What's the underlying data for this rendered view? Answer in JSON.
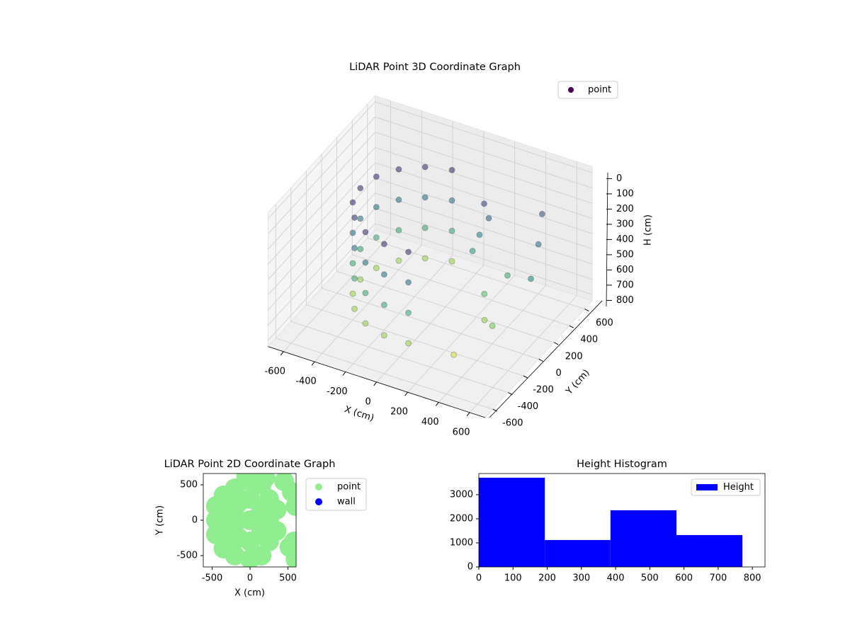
{
  "chart_data": [
    {
      "type": "scatter3d",
      "title": "LiDAR Point 3D Coordinate Graph",
      "xlabel": "X (cm)",
      "ylabel": "Y (cm)",
      "zlabel": "H (cm)",
      "xlim": [
        -700,
        700
      ],
      "ylim": [
        -700,
        700
      ],
      "zlim": [
        -40,
        840
      ],
      "z_inverted": true,
      "xticks": [
        -600,
        -400,
        -200,
        0,
        200,
        400,
        600
      ],
      "yticks": [
        -600,
        -400,
        -200,
        0,
        200,
        400,
        600
      ],
      "zticks": [
        0,
        100,
        200,
        300,
        400,
        500,
        600,
        700,
        800
      ],
      "grid": true,
      "legend": "upper right",
      "colormap": "viridis",
      "series": [
        {
          "name": "point",
          "color": "#440154",
          "x": [
            -78,
            -225,
            -345,
            -423,
            -450,
            -423,
            -345,
            -225,
            -78,
            78,
            -78,
            -225,
            -345,
            -423,
            -450,
            -423,
            -345,
            -225,
            -78,
            78,
            -78,
            -225,
            -345,
            -423,
            -450,
            -423,
            -345,
            -225,
            -78,
            78,
            -78,
            -225,
            -345,
            -423,
            -450,
            -423,
            -345,
            -225,
            -78,
            78,
            200,
            220,
            180,
            150,
            300,
            350,
            400,
            500,
            550,
            450,
            600,
            300
          ],
          "y": [
            443,
            390,
            289,
            154,
            0,
            -154,
            -289,
            -390,
            -443,
            -443,
            443,
            390,
            289,
            154,
            0,
            -154,
            -289,
            -390,
            -443,
            -443,
            443,
            390,
            289,
            154,
            0,
            -154,
            -289,
            -390,
            -443,
            -443,
            443,
            390,
            289,
            154,
            0,
            -154,
            -289,
            -390,
            -443,
            -443,
            300,
            320,
            280,
            250,
            100,
            0,
            200,
            450,
            300,
            -100,
            100,
            -300
          ],
          "values": [
            100,
            100,
            100,
            100,
            100,
            100,
            100,
            100,
            100,
            100,
            300,
            300,
            300,
            300,
            300,
            300,
            300,
            300,
            300,
            300,
            500,
            500,
            500,
            500,
            500,
            500,
            500,
            500,
            500,
            500,
            700,
            700,
            700,
            700,
            700,
            700,
            700,
            700,
            700,
            700,
            150,
            250,
            350,
            450,
            600,
            700,
            500,
            200,
            300,
            650,
            400,
            780
          ]
        }
      ]
    },
    {
      "type": "scatter",
      "title": "LiDAR Point 2D Coordinate Graph",
      "xlabel": "X (cm)",
      "ylabel": "Y (cm)",
      "xlim": [
        -617,
        607
      ],
      "ylim": [
        -660,
        660
      ],
      "xticks": [
        -500,
        0,
        500
      ],
      "yticks": [
        -500,
        0,
        500
      ],
      "legend": "outside right",
      "series": [
        {
          "name": "point",
          "color": "#90ee90",
          "x": [
            -450,
            -450,
            -450,
            -350,
            -350,
            -300,
            -300,
            -300,
            -200,
            -200,
            -150,
            -150,
            -150,
            0,
            0,
            0,
            0,
            0,
            150,
            150,
            150,
            150,
            250,
            250,
            250,
            350,
            350,
            100,
            -50,
            200,
            550,
            600,
            580,
            520,
            600,
            450
          ],
          "y": [
            0,
            -200,
            200,
            350,
            -400,
            0,
            -200,
            200,
            450,
            -500,
            0,
            250,
            -250,
            550,
            -550,
            0,
            300,
            -300,
            500,
            -500,
            150,
            -150,
            300,
            -300,
            0,
            150,
            -150,
            600,
            620,
            600,
            400,
            200,
            -300,
            -380,
            -550,
            550
          ]
        },
        {
          "name": "wall",
          "color": "#0000ff",
          "x": [],
          "y": []
        }
      ]
    },
    {
      "type": "histogram",
      "title": "Height Histogram",
      "xlim": [
        0,
        837
      ],
      "ylim": [
        0,
        3880
      ],
      "xticks": [
        0,
        100,
        200,
        300,
        400,
        500,
        600,
        700,
        800
      ],
      "yticks": [
        0,
        1000,
        2000,
        3000
      ],
      "legend": "upper right",
      "series": [
        {
          "name": "Height",
          "color": "#0000ff",
          "bins": [
            0,
            193,
            385,
            578,
            771
          ],
          "values": [
            3706,
            1118,
            2353,
            1324
          ]
        }
      ]
    }
  ]
}
